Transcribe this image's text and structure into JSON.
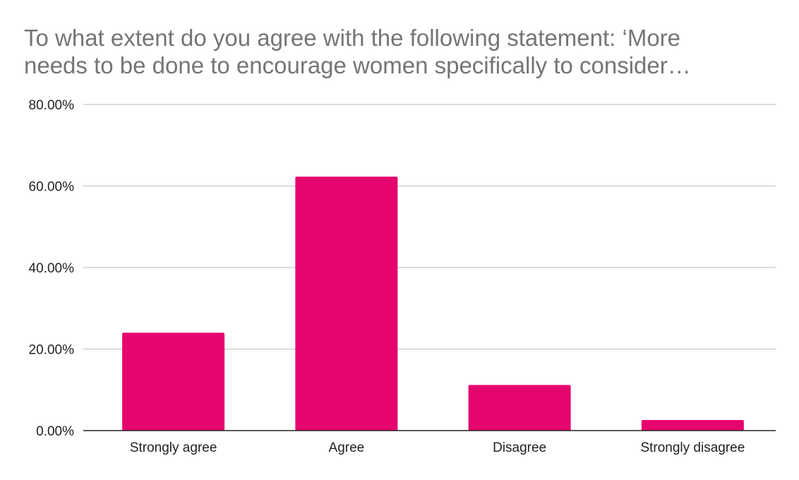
{
  "chart_data": {
    "type": "bar",
    "title_lines": [
      "To what extent do you agree with the following statement: ‘More",
      "needs to be done to encourage women specifically to consider…"
    ],
    "categories": [
      "Strongly agree",
      "Agree",
      "Disagree",
      "Strongly disagree"
    ],
    "values": [
      24.0,
      62.3,
      11.2,
      2.6
    ],
    "ylim": [
      0,
      80
    ],
    "yticks": [
      0,
      20,
      40,
      60,
      80
    ],
    "ytick_labels": [
      "0.00%",
      "20.00%",
      "40.00%",
      "60.00%",
      "80.00%"
    ],
    "xlabel": "",
    "ylabel": "",
    "grid": true,
    "legend": "none",
    "bar_color": "#e6056f",
    "grid_color": "#c8c8c8",
    "axis_color": "#222222"
  }
}
